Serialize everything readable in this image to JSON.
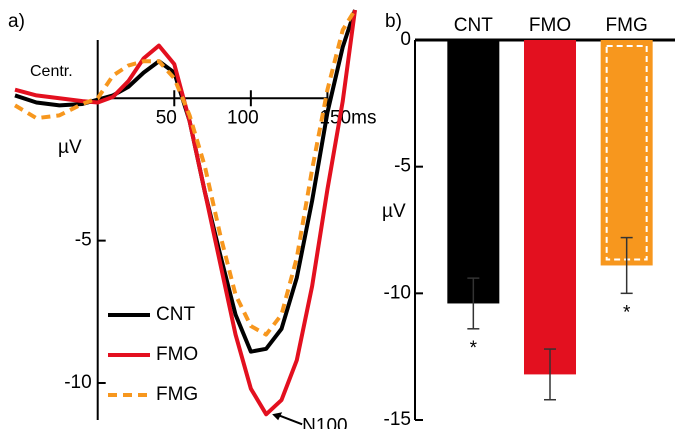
{
  "chart_data": [
    {
      "type": "line",
      "panel_label": "a)",
      "subtitle": "Centr.",
      "ylabel": "µV",
      "annotation": "N100",
      "x": [
        -54,
        -40,
        -25,
        -10,
        0,
        10,
        20,
        30,
        40,
        50,
        60,
        70,
        80,
        90,
        100,
        110,
        120,
        130,
        140,
        150,
        160,
        168
      ],
      "series": [
        {
          "name": "CNT",
          "color": "#000000",
          "dash": false,
          "values": [
            0.1,
            -0.15,
            -0.25,
            -0.2,
            -0.05,
            0.1,
            0.4,
            0.9,
            1.3,
            0.9,
            -0.8,
            -3.3,
            -5.5,
            -7.6,
            -8.9,
            -8.8,
            -8.1,
            -6.3,
            -3.6,
            -0.5,
            1.8,
            3.1
          ]
        },
        {
          "name": "FMO",
          "color": "#e3101f",
          "dash": false,
          "values": [
            0.3,
            0.1,
            0,
            -0.1,
            -0.15,
            0.05,
            0.6,
            1.4,
            1.85,
            1.2,
            -0.8,
            -3.3,
            -5.8,
            -8.3,
            -10.2,
            -11.1,
            -10.6,
            -9.2,
            -6.6,
            -3.2,
            -0.1,
            3.1
          ]
        },
        {
          "name": "FMG",
          "color": "#f7971e",
          "dash": true,
          "values": [
            -0.25,
            -0.7,
            -0.6,
            -0.2,
            0,
            0.8,
            1.15,
            1.3,
            1.3,
            0.7,
            -0.6,
            -2.4,
            -4.8,
            -6.9,
            -8.0,
            -8.3,
            -7.6,
            -5.6,
            -2.5,
            0.3,
            2.4,
            3.1
          ]
        }
      ],
      "xlim": [
        -54,
        168
      ],
      "ylim": [
        -11.3,
        3.1
      ],
      "xticks": [
        50,
        100,
        {
          "value": 150,
          "label": "150ms"
        }
      ],
      "yticks": [
        -10,
        -5
      ],
      "legend": "lower left"
    },
    {
      "type": "bar",
      "panel_label": "b)",
      "ylabel": "µV",
      "categories": [
        "CNT",
        "FMO",
        "FMG"
      ],
      "values": [
        -10.4,
        -13.2,
        -8.9
      ],
      "errors": [
        1.0,
        1.0,
        1.1
      ],
      "colors": [
        "#000000",
        "#e3101f",
        "#f7971e"
      ],
      "significance": [
        "*",
        null,
        "*"
      ],
      "ylim": [
        -15,
        0
      ],
      "yticks": [
        0,
        -5,
        -10,
        -15
      ]
    }
  ]
}
